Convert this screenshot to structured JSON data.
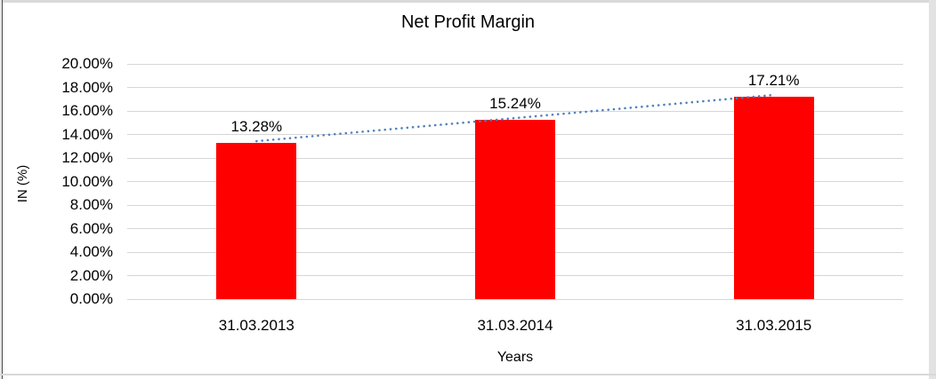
{
  "chart_data": {
    "type": "bar",
    "title": "Net Profit Margin",
    "categories": [
      "31.03.2013",
      "31.03.2014",
      "31.03.2015"
    ],
    "values": [
      13.28,
      15.24,
      17.21
    ],
    "value_labels": [
      "13.28%",
      "15.24%",
      "17.21%"
    ],
    "xlabel": "Years",
    "ylabel": "IN (%)",
    "ylim": [
      0,
      20
    ],
    "ytick_step": 2,
    "ytick_labels": [
      "0.00%",
      "2.00%",
      "4.00%",
      "6.00%",
      "8.00%",
      "10.00%",
      "12.00%",
      "14.00%",
      "16.00%",
      "18.00%",
      "20.00%"
    ],
    "bar_color": "#FF0000",
    "gridline_color": "#D6D6D6",
    "grid": true,
    "legend": "none",
    "trendline": {
      "kind": "linear",
      "style": "dotted",
      "color": "#4F81BD"
    }
  }
}
